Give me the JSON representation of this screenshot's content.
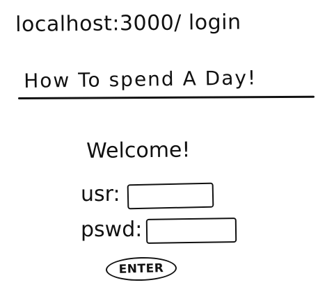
{
  "browser": {
    "url": "localhost:3000/ login"
  },
  "header": {
    "title": "How To spend A Day!"
  },
  "login_form": {
    "welcome": "Welcome!",
    "usr_label": "usr:",
    "usr_value": "",
    "pswd_label": "pswd:",
    "pswd_value": "",
    "enter_label": "ENTER"
  }
}
